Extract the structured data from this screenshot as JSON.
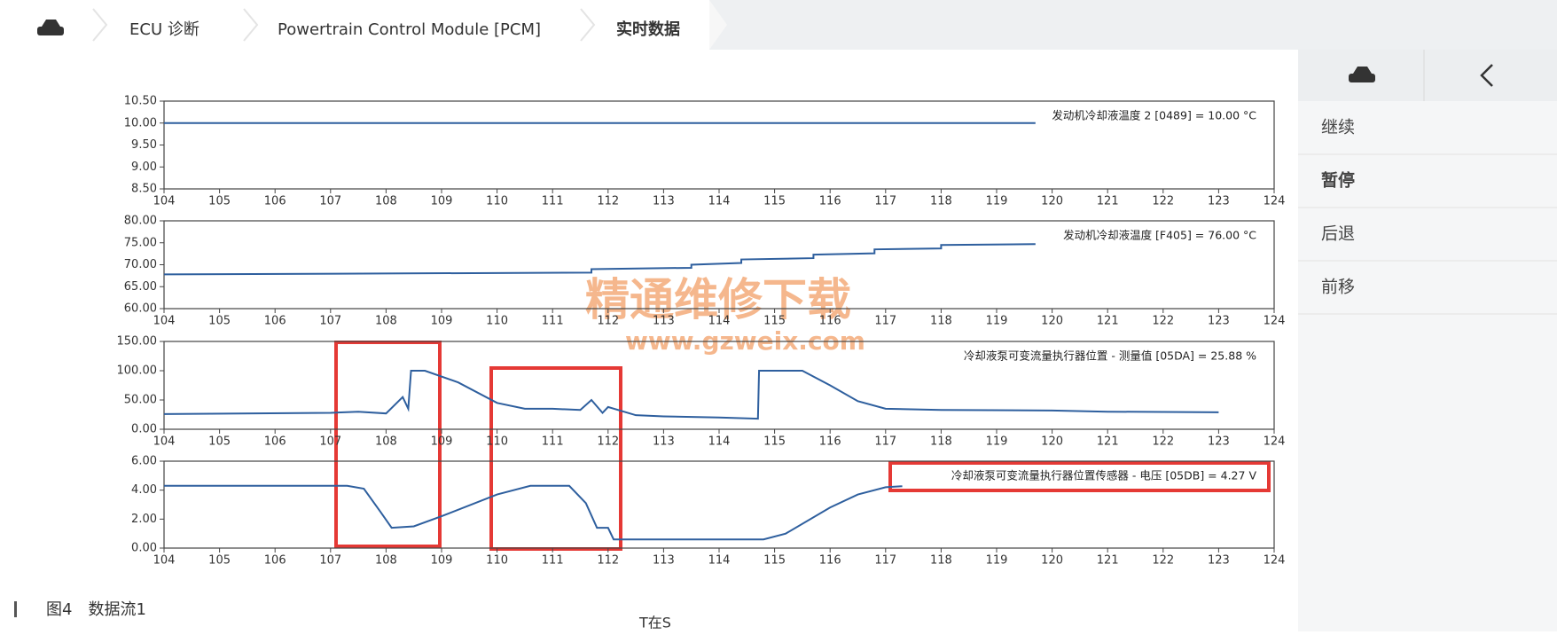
{
  "header": {
    "breadcrumbs": [
      "ECU 诊断",
      "Powertrain Control Module [PCM]",
      "实时数据"
    ]
  },
  "sidebar": {
    "items": [
      "继续",
      "暂停",
      "后退",
      "前移"
    ]
  },
  "watermark": {
    "title": "精通维修下载",
    "url": "www.gzweix.com"
  },
  "caption": "图4　数据流1",
  "x_label": "T在S",
  "chart_data": [
    {
      "type": "line",
      "annotation": "发动机冷却液温度 2 [0489] = 10.00 °C",
      "xlim": [
        104,
        124
      ],
      "xticks": [
        104,
        105,
        106,
        107,
        108,
        109,
        110,
        111,
        112,
        113,
        114,
        115,
        116,
        117,
        118,
        119,
        120,
        121,
        122,
        123,
        124
      ],
      "ylim": [
        8.5,
        10.5
      ],
      "yticks": [
        {
          "value": 8.5,
          "label": "8.50"
        },
        {
          "value": 9,
          "label": "9.00"
        },
        {
          "value": 9.5,
          "label": "9.50"
        },
        {
          "value": 10,
          "label": "10.00"
        },
        {
          "value": 10.5,
          "label": "10.50"
        }
      ],
      "x": [
        104,
        119.7
      ],
      "series": [
        {
          "color": "#2e5f9e",
          "values": [
            10,
            10
          ]
        }
      ]
    },
    {
      "type": "line",
      "annotation": "发动机冷却液温度 [F405] = 76.00 °C",
      "xlim": [
        104,
        124
      ],
      "xticks": [
        104,
        105,
        106,
        107,
        108,
        109,
        110,
        111,
        112,
        113,
        114,
        115,
        116,
        117,
        118,
        119,
        120,
        121,
        122,
        123,
        124
      ],
      "ylim": [
        60,
        80
      ],
      "yticks": [
        {
          "value": 60,
          "label": "60.00"
        },
        {
          "value": 65,
          "label": "65.00"
        },
        {
          "value": 70,
          "label": "70.00"
        },
        {
          "value": 75,
          "label": "75.00"
        },
        {
          "value": 80,
          "label": "80.00"
        }
      ],
      "x": [
        104,
        111.7,
        111.7,
        113.5,
        113.5,
        114.4,
        114.4,
        115.7,
        115.7,
        116.8,
        116.8,
        118,
        118,
        119.7
      ],
      "series": [
        {
          "color": "#2e5f9e",
          "values": [
            67.8,
            68.2,
            69,
            69.3,
            70,
            70.4,
            71.2,
            71.5,
            72.3,
            72.6,
            73.5,
            73.7,
            74.5,
            74.7
          ]
        }
      ]
    },
    {
      "type": "line",
      "annotation": "冷却液泵可变流量执行器位置 - 测量值 [05DA] = 25.88 %",
      "xlim": [
        104,
        124
      ],
      "xticks": [
        104,
        105,
        106,
        107,
        108,
        109,
        110,
        111,
        112,
        113,
        114,
        115,
        116,
        117,
        118,
        119,
        120,
        121,
        122,
        123,
        124
      ],
      "ylim": [
        0,
        150
      ],
      "yticks": [
        {
          "value": 0,
          "label": "0.00"
        },
        {
          "value": 50,
          "label": "50.00"
        },
        {
          "value": 100,
          "label": "100.00"
        },
        {
          "value": 150,
          "label": "150.00"
        }
      ],
      "x": [
        104,
        107,
        107.5,
        108,
        108.3,
        108.4,
        108.45,
        108.7,
        109.3,
        110,
        110.5,
        111,
        111.5,
        111.7,
        111.9,
        112,
        112.5,
        113,
        114,
        114.7,
        114.72,
        115.5,
        116,
        116.5,
        117,
        118,
        120,
        121,
        123
      ],
      "series": [
        {
          "color": "#2e5f9e",
          "values": [
            26,
            28,
            30,
            27,
            55,
            35,
            100,
            100,
            80,
            45,
            35,
            35,
            33,
            50,
            28,
            38,
            24,
            22,
            20,
            18,
            100,
            100,
            75,
            48,
            35,
            33,
            32,
            30,
            29
          ]
        }
      ]
    },
    {
      "type": "line",
      "annotation": "冷却液泵可变流量执行器位置传感器 - 电压 [05DB] = 4.27 V",
      "xlim": [
        104,
        124
      ],
      "xticks": [
        104,
        105,
        106,
        107,
        108,
        109,
        110,
        111,
        112,
        113,
        114,
        115,
        116,
        117,
        118,
        119,
        120,
        121,
        122,
        123,
        124
      ],
      "ylim": [
        0,
        6
      ],
      "yticks": [
        {
          "value": 0,
          "label": "0.00"
        },
        {
          "value": 2,
          "label": "2.00"
        },
        {
          "value": 4,
          "label": "4.00"
        },
        {
          "value": 6,
          "label": "6.00"
        }
      ],
      "x": [
        104,
        107.3,
        107.6,
        107.9,
        108.1,
        108.5,
        109,
        110,
        110.6,
        111.3,
        111.6,
        111.8,
        112,
        112.1,
        113,
        114.8,
        115.2,
        116,
        116.5,
        117,
        117.3
      ],
      "series": [
        {
          "color": "#2e5f9e",
          "values": [
            4.3,
            4.3,
            4.1,
            2.5,
            1.4,
            1.5,
            2.2,
            3.7,
            4.3,
            4.3,
            3.1,
            1.4,
            1.4,
            0.6,
            0.6,
            0.6,
            1.0,
            2.8,
            3.7,
            4.2,
            4.27
          ]
        }
      ]
    }
  ]
}
